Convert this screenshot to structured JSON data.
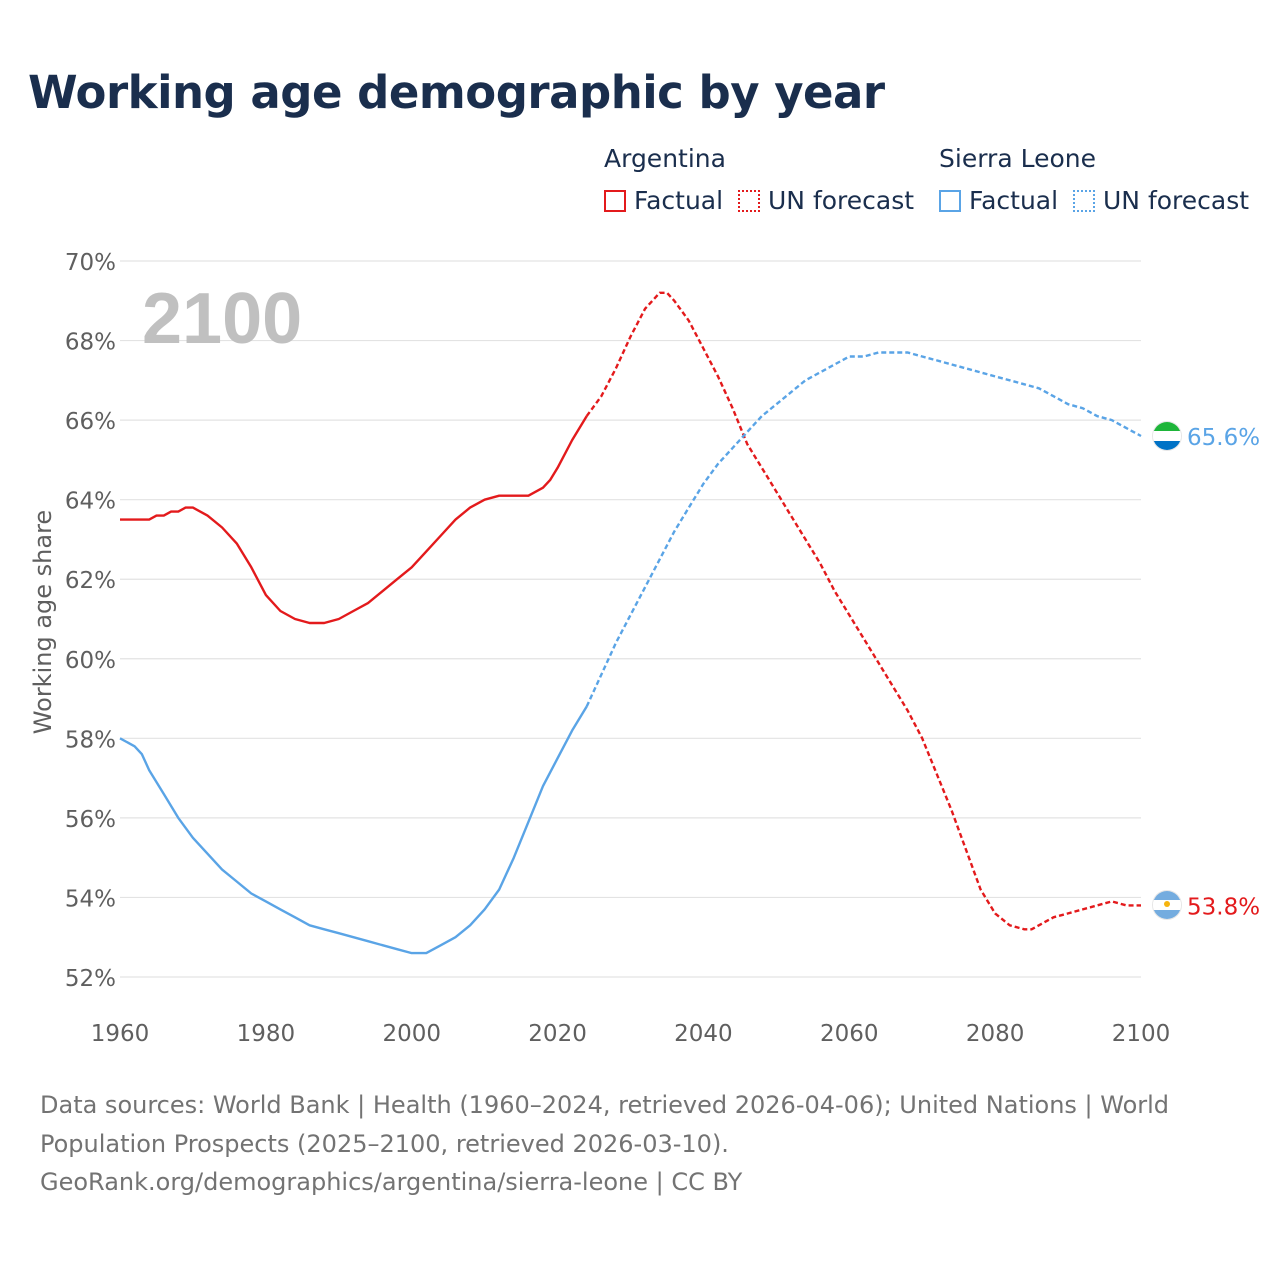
{
  "title": "Working age demographic by year",
  "legend": {
    "groups": [
      {
        "name": "Argentina",
        "factual_label": "Factual",
        "forecast_label": "UN forecast",
        "color": "#e31a1c"
      },
      {
        "name": "Sierra Leone",
        "factual_label": "Factual",
        "forecast_label": "UN forecast",
        "color": "#5aa4e6"
      }
    ]
  },
  "year_watermark": "2100",
  "source": {
    "line1": "Data sources: World Bank | Health (1960–2024, retrieved 2026-04-06); United Nations | World Population Prospects (2025–2100, retrieved 2026-03-10).",
    "line2": "GeoRank.org/demographics/argentina/sierra-leone | CC BY"
  },
  "flags": {
    "argentina": {
      "colors": [
        "#74acdf",
        "#ffffff",
        "#74acdf"
      ],
      "sun_color": "#f6b40e"
    },
    "sierra_leone": {
      "colors": [
        "#1eb53a",
        "#ffffff",
        "#0072c6"
      ]
    }
  },
  "chart_data": {
    "type": "line",
    "title": "Working age demographic by year",
    "xlabel": "",
    "ylabel": "Working age share",
    "xlim": [
      1960,
      2100
    ],
    "ylim": [
      52,
      70
    ],
    "x_ticks": [
      1960,
      1980,
      2000,
      2020,
      2040,
      2060,
      2080,
      2100
    ],
    "y_ticks": [
      52,
      54,
      56,
      58,
      60,
      62,
      64,
      66,
      68,
      70
    ],
    "y_tick_suffix": "%",
    "grid": true,
    "series": [
      {
        "name": "Argentina",
        "color": "#e31a1c",
        "end_label": "53.8%",
        "factual": {
          "x": [
            1960,
            1962,
            1964,
            1965,
            1966,
            1967,
            1968,
            1969,
            1970,
            1972,
            1974,
            1976,
            1978,
            1980,
            1982,
            1984,
            1986,
            1988,
            1990,
            1992,
            1994,
            1996,
            1998,
            2000,
            2002,
            2004,
            2006,
            2008,
            2010,
            2012,
            2014,
            2016,
            2018,
            2019,
            2020,
            2022,
            2024
          ],
          "y": [
            63.5,
            63.5,
            63.5,
            63.6,
            63.6,
            63.7,
            63.7,
            63.8,
            63.8,
            63.6,
            63.3,
            62.9,
            62.3,
            61.6,
            61.2,
            61.0,
            60.9,
            60.9,
            61.0,
            61.2,
            61.4,
            61.7,
            62.0,
            62.3,
            62.7,
            63.1,
            63.5,
            63.8,
            64.0,
            64.1,
            64.1,
            64.1,
            64.3,
            64.5,
            64.8,
            65.5,
            66.1
          ]
        },
        "forecast": {
          "x": [
            2024,
            2026,
            2028,
            2030,
            2032,
            2034,
            2035,
            2036,
            2038,
            2040,
            2042,
            2044,
            2046,
            2048,
            2050,
            2052,
            2054,
            2056,
            2058,
            2060,
            2062,
            2064,
            2066,
            2068,
            2070,
            2072,
            2074,
            2076,
            2078,
            2080,
            2082,
            2084,
            2085,
            2086,
            2088,
            2090,
            2092,
            2094,
            2096,
            2098,
            2100
          ],
          "y": [
            66.1,
            66.6,
            67.3,
            68.1,
            68.8,
            69.2,
            69.2,
            69.0,
            68.5,
            67.8,
            67.1,
            66.3,
            65.4,
            64.8,
            64.2,
            63.6,
            63.0,
            62.4,
            61.7,
            61.1,
            60.5,
            59.9,
            59.3,
            58.7,
            58.0,
            57.1,
            56.2,
            55.2,
            54.2,
            53.6,
            53.3,
            53.2,
            53.2,
            53.3,
            53.5,
            53.6,
            53.7,
            53.8,
            53.9,
            53.8,
            53.8
          ]
        }
      },
      {
        "name": "Sierra Leone",
        "color": "#5aa4e6",
        "end_label": "65.6%",
        "factual": {
          "x": [
            1960,
            1962,
            1963,
            1964,
            1966,
            1968,
            1970,
            1972,
            1974,
            1976,
            1978,
            1980,
            1982,
            1984,
            1986,
            1988,
            1990,
            1992,
            1994,
            1996,
            1998,
            2000,
            2002,
            2004,
            2006,
            2008,
            2010,
            2012,
            2014,
            2016,
            2018,
            2020,
            2022,
            2024
          ],
          "y": [
            58.0,
            57.8,
            57.6,
            57.2,
            56.6,
            56.0,
            55.5,
            55.1,
            54.7,
            54.4,
            54.1,
            53.9,
            53.7,
            53.5,
            53.3,
            53.2,
            53.1,
            53.0,
            52.9,
            52.8,
            52.7,
            52.6,
            52.6,
            52.8,
            53.0,
            53.3,
            53.7,
            54.2,
            55.0,
            55.9,
            56.8,
            57.5,
            58.2,
            58.8
          ]
        },
        "forecast": {
          "x": [
            2024,
            2026,
            2028,
            2030,
            2032,
            2034,
            2036,
            2038,
            2040,
            2042,
            2044,
            2046,
            2048,
            2050,
            2052,
            2054,
            2056,
            2058,
            2060,
            2062,
            2064,
            2066,
            2068,
            2070,
            2072,
            2074,
            2076,
            2078,
            2080,
            2082,
            2084,
            2086,
            2088,
            2090,
            2092,
            2094,
            2096,
            2098,
            2100
          ],
          "y": [
            58.8,
            59.6,
            60.4,
            61.1,
            61.8,
            62.5,
            63.2,
            63.8,
            64.4,
            64.9,
            65.3,
            65.7,
            66.1,
            66.4,
            66.7,
            67.0,
            67.2,
            67.4,
            67.6,
            67.6,
            67.7,
            67.7,
            67.7,
            67.6,
            67.5,
            67.4,
            67.3,
            67.2,
            67.1,
            67.0,
            66.9,
            66.8,
            66.6,
            66.4,
            66.3,
            66.1,
            66.0,
            65.8,
            65.6
          ]
        }
      }
    ]
  }
}
